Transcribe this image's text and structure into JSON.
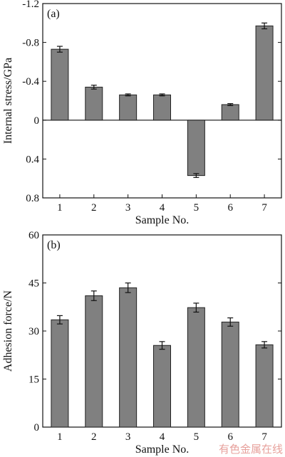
{
  "watermark": "有色金属在线",
  "chart_data": [
    {
      "type": "bar",
      "panel_label": "(a)",
      "xlabel": "Sample No.",
      "ylabel": "Internal stress/GPa",
      "categories": [
        "1",
        "2",
        "3",
        "4",
        "5",
        "6",
        "7"
      ],
      "values": [
        -0.73,
        -0.34,
        -0.26,
        -0.26,
        0.57,
        -0.16,
        -0.97
      ],
      "errors": [
        0.03,
        0.02,
        0.01,
        0.01,
        0.02,
        0.01,
        0.03
      ],
      "ylim": [
        0.8,
        -1.2
      ],
      "yticks": [
        -1.2,
        -0.8,
        -0.4,
        0,
        0.4,
        0.8
      ],
      "ytick_labels": [
        "-1.2",
        "-0.8",
        "-0.4",
        "0",
        "0.4",
        "0.8"
      ],
      "y_axis_inverted": true,
      "zero_line": true,
      "grid": false,
      "bar_color": "#808080",
      "error_bar_color": "#111111"
    },
    {
      "type": "bar",
      "panel_label": "(b)",
      "xlabel": "Sample No.",
      "ylabel": "Adhesion force/N",
      "categories": [
        "1",
        "2",
        "3",
        "4",
        "5",
        "6",
        "7"
      ],
      "values": [
        33.5,
        41,
        43.5,
        25.5,
        37.3,
        32.8,
        25.7
      ],
      "errors": [
        1.3,
        1.5,
        1.5,
        1.2,
        1.4,
        1.3,
        1.0
      ],
      "ylim": [
        0,
        60
      ],
      "yticks": [
        0,
        15,
        30,
        45,
        60
      ],
      "ytick_labels": [
        "0",
        "15",
        "30",
        "45",
        "60"
      ],
      "y_axis_inverted": false,
      "zero_line": false,
      "grid": false,
      "bar_color": "#808080",
      "error_bar_color": "#111111"
    }
  ]
}
